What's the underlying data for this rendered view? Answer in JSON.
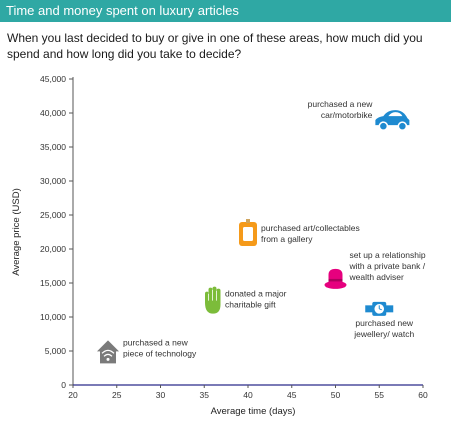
{
  "header": {
    "title": "Time and money spent on luxury articles"
  },
  "question": "When you last decided to buy or give in one of these areas, how much did you spend and how long did you take to decide?",
  "colors": {
    "banner": "#2fa8a4",
    "car": "#1e8ad0",
    "art": "#f59a1a",
    "bank": "#e6007e",
    "gift": "#7cbc3a",
    "watch": "#1e8ad0",
    "technology": "#7a7a7a",
    "axis_line": "#2b2a8a"
  },
  "chart_data": {
    "type": "scatter",
    "xlabel": "Average time (days)",
    "ylabel": "Average price (USD)",
    "xlim": [
      20,
      60
    ],
    "ylim": [
      0,
      45000
    ],
    "x_ticks": [
      "20",
      "25",
      "30",
      "35",
      "40",
      "45",
      "50",
      "55",
      "60"
    ],
    "y_ticks": [
      "0",
      "5,000",
      "10,000",
      "15,000",
      "20,000",
      "25,000",
      "30,000",
      "35,000",
      "40,000",
      "45,000"
    ],
    "grid": false,
    "points": [
      {
        "key": "car",
        "icon": "car-icon",
        "x": 56.5,
        "y": 38800,
        "label": [
          "purchased a new",
          "car/motorbike"
        ]
      },
      {
        "key": "art",
        "icon": "art-frame-icon",
        "x": 40,
        "y": 22200,
        "label": [
          "purchased art/collectables",
          "from a gallery"
        ]
      },
      {
        "key": "bank",
        "icon": "hat-icon",
        "x": 50,
        "y": 15600,
        "label": [
          "set up a relationship",
          "with a private bank /",
          "wealth adviser"
        ]
      },
      {
        "key": "gift",
        "icon": "hand-icon",
        "x": 36,
        "y": 12400,
        "label": [
          "donated a major",
          "charitable gift"
        ]
      },
      {
        "key": "watch",
        "icon": "watch-icon",
        "x": 55,
        "y": 11200,
        "label": [
          "purchased new",
          "jewellery/ watch"
        ]
      },
      {
        "key": "technology",
        "icon": "house-tech-icon",
        "x": 24,
        "y": 4800,
        "label": [
          "purchased a new",
          "piece of technology"
        ]
      }
    ]
  }
}
